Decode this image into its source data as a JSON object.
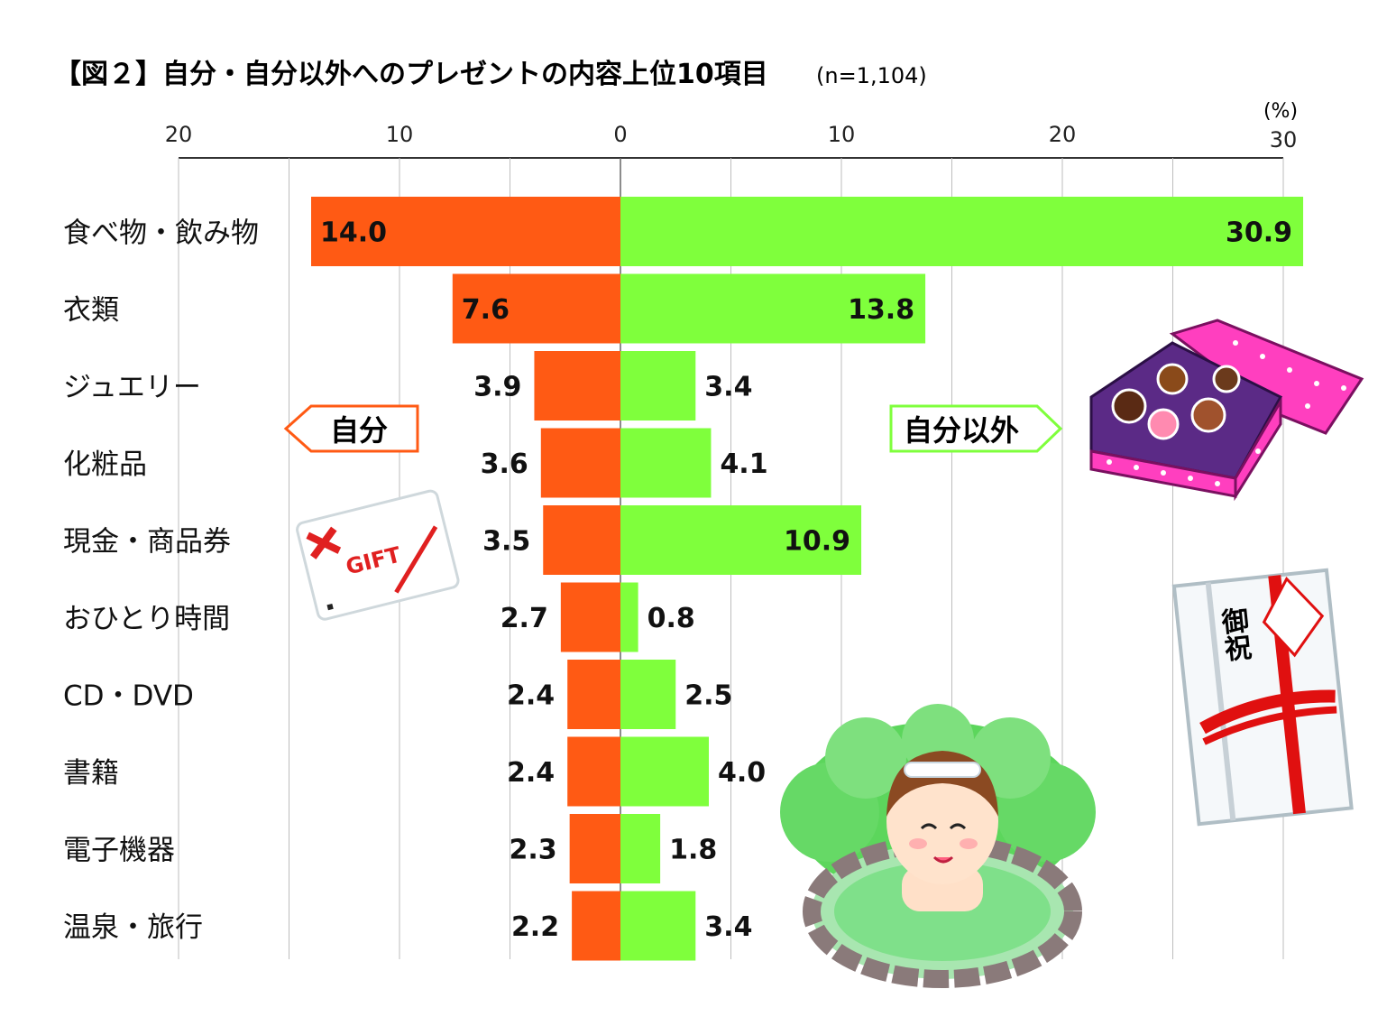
{
  "chart_data": {
    "type": "bar",
    "title": "【図２】自分・自分以外へのプレゼントの内容上位10項目",
    "subtitle": "(n=1,104)",
    "unit_label": "(%)",
    "categories": [
      "食べ物・飲み物",
      "衣類",
      "ジュエリー",
      "化粧品",
      "現金・商品券",
      "おひとり時間",
      "CD・DVD",
      "書籍",
      "電子機器",
      "温泉・旅行"
    ],
    "series": [
      {
        "name": "自分",
        "color": "#ff5a14",
        "direction": "left",
        "values": [
          14.0,
          7.6,
          3.9,
          3.6,
          3.5,
          2.7,
          2.4,
          2.4,
          2.3,
          2.2
        ]
      },
      {
        "name": "自分以外",
        "color": "#7fff3c",
        "direction": "right",
        "values": [
          30.9,
          13.8,
          3.4,
          4.1,
          10.9,
          0.8,
          2.5,
          4.0,
          1.8,
          3.4
        ]
      }
    ],
    "axis_ticks": [
      {
        "value": -20,
        "label": "20"
      },
      {
        "value": -10,
        "label": "10"
      },
      {
        "value": 0,
        "label": "0"
      },
      {
        "value": 10,
        "label": "10"
      },
      {
        "value": 20,
        "label": "20"
      },
      {
        "value": 30,
        "label": "30"
      }
    ],
    "xlim": [
      -20,
      30
    ],
    "grid": true,
    "legend_placement": "arrows inside plot, middle"
  },
  "illustrations": {
    "gift_card_text": "GIFT",
    "envelope_text": "御祝",
    "chocolate_icon": "chocolate-box-icon",
    "onsen_icon": "onsen-woman-icon"
  }
}
